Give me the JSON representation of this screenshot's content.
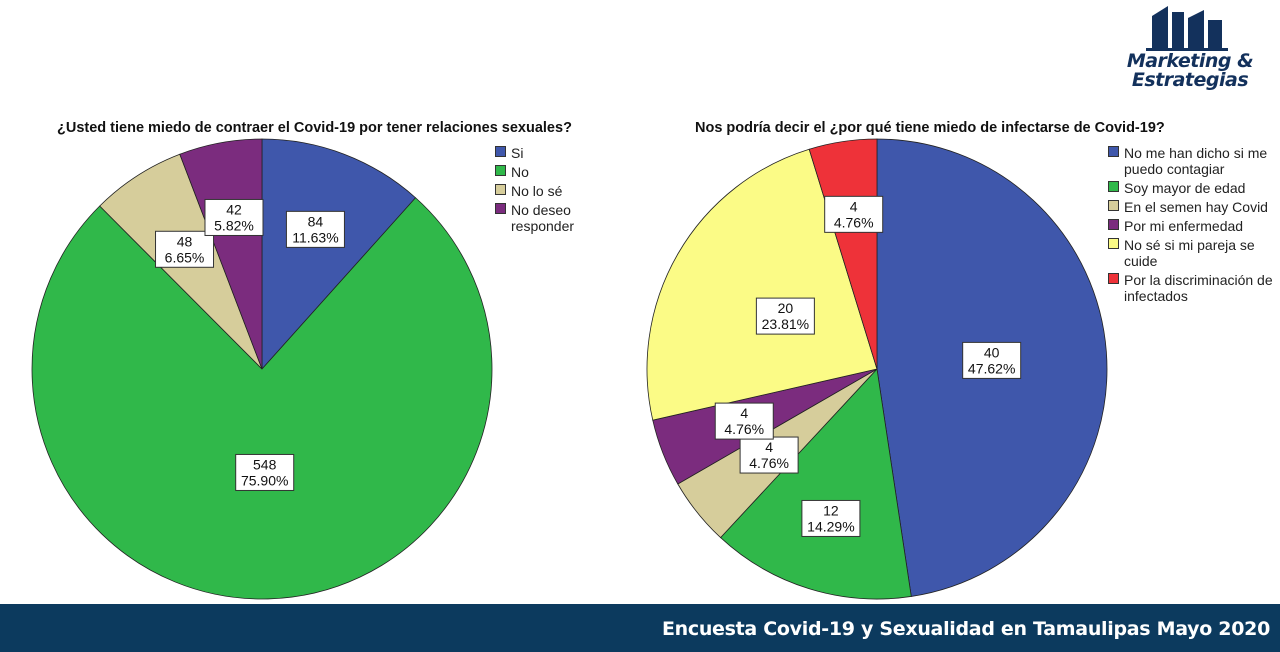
{
  "logo": {
    "line1": "Marketing &",
    "line2": "Estrategias"
  },
  "footer": {
    "text": "Encuesta Covid-19 y Sexualidad en Tamaulipas Mayo 2020"
  },
  "chart_data": [
    {
      "type": "pie",
      "title": "¿Usted tiene miedo de contraer el Covid-19 por tener relaciones sexuales?",
      "legend_position": "right",
      "slices": [
        {
          "label": "Si",
          "value": 84,
          "percent": "11.63%",
          "color": "#3f57ab"
        },
        {
          "label": "No",
          "value": 548,
          "percent": "75.90%",
          "color": "#30b84a"
        },
        {
          "label": "No lo sé",
          "value": 48,
          "percent": "6.65%",
          "color": "#d6cd9b"
        },
        {
          "label": "No deseo responder",
          "value": 42,
          "percent": "5.82%",
          "color": "#7b2c7e"
        }
      ]
    },
    {
      "type": "pie",
      "title": "Nos podría decir el ¿por qué tiene miedo de infectarse de Covid-19?",
      "legend_position": "right",
      "slices": [
        {
          "label": "No me han dicho si me puedo contagiar",
          "value": 40,
          "percent": "47.62%",
          "color": "#3f57ab"
        },
        {
          "label": "Soy mayor de edad",
          "value": 12,
          "percent": "14.29%",
          "color": "#30b84a"
        },
        {
          "label": "En el semen hay Covid",
          "value": 4,
          "percent": "4.76%",
          "color": "#d6cd9b"
        },
        {
          "label": "Por mi enfermedad",
          "value": 4,
          "percent": "4.76%",
          "color": "#7b2c7e"
        },
        {
          "label": "No sé si mi pareja se cuide",
          "value": 20,
          "percent": "23.81%",
          "color": "#fbfb86"
        },
        {
          "label": "Por la discriminación de infectados",
          "value": 4,
          "percent": "4.76%",
          "color": "#ee3239"
        }
      ]
    }
  ]
}
